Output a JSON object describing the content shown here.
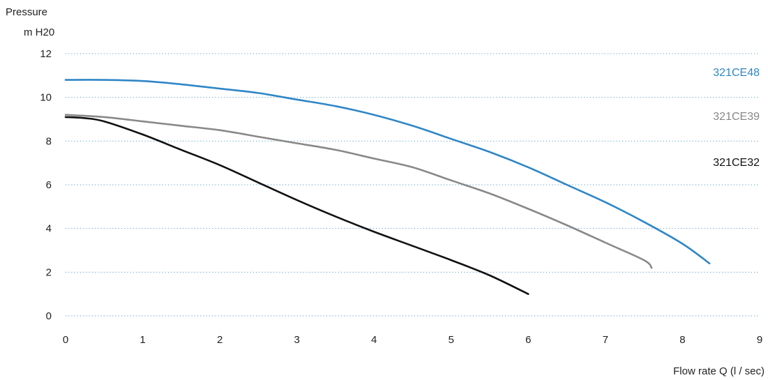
{
  "chart_data": {
    "type": "line",
    "xlabel": "Flow rate Q  (l / sec)",
    "ylabel_line1": "Pressure",
    "ylabel_line2": "m H20",
    "xlim": [
      0,
      9
    ],
    "ylim": [
      0,
      12
    ],
    "xticks": [
      "0",
      "1",
      "2",
      "3",
      "4",
      "5",
      "6",
      "7",
      "8",
      "9"
    ],
    "yticks": [
      "0",
      "2",
      "4",
      "6",
      "8",
      "10",
      "12"
    ],
    "grid": "horizontal dotted",
    "legend": "right, inline labels",
    "series": [
      {
        "name": "321CE48",
        "color": "#2f86c6",
        "x": [
          0,
          0.5,
          1,
          1.5,
          2,
          2.5,
          3,
          3.5,
          4,
          4.5,
          5,
          5.5,
          6,
          6.5,
          7,
          7.5,
          8,
          8.35
        ],
        "y": [
          10.8,
          10.8,
          10.75,
          10.6,
          10.4,
          10.2,
          9.9,
          9.6,
          9.2,
          8.7,
          8.1,
          7.5,
          6.8,
          6.0,
          5.2,
          4.3,
          3.3,
          2.4
        ]
      },
      {
        "name": "321CE39",
        "color": "#888888",
        "x": [
          0,
          0.5,
          1,
          1.5,
          2,
          2.5,
          3,
          3.5,
          4,
          4.5,
          5,
          5.5,
          6,
          6.5,
          7,
          7.5,
          7.6
        ],
        "y": [
          9.2,
          9.1,
          8.9,
          8.7,
          8.5,
          8.2,
          7.9,
          7.6,
          7.2,
          6.8,
          6.2,
          5.6,
          4.9,
          4.15,
          3.35,
          2.55,
          2.2
        ]
      },
      {
        "name": "321CE32",
        "color": "#111111",
        "x": [
          0,
          0.25,
          0.5,
          1,
          1.5,
          2,
          2.5,
          3,
          3.5,
          4,
          4.5,
          5,
          5.5,
          6
        ],
        "y": [
          9.1,
          9.05,
          8.9,
          8.3,
          7.6,
          6.9,
          6.1,
          5.3,
          4.55,
          3.85,
          3.2,
          2.55,
          1.85,
          1.0
        ]
      }
    ]
  }
}
